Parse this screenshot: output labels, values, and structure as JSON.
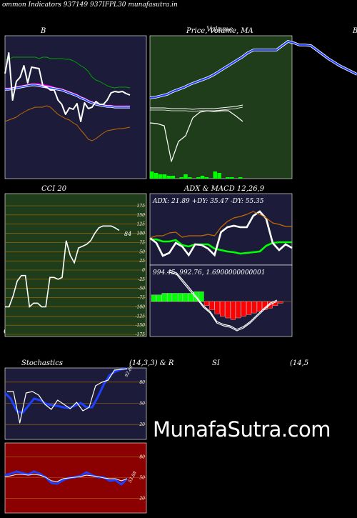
{
  "page": {
    "title": "ommon Indicators 937149 937IFPL30  munafasutra.in",
    "side_label_right": "B",
    "bottom_left_label": "C",
    "watermark": "MunafaSutra.com"
  },
  "panels": {
    "bollinger": {
      "title": "B"
    },
    "price": {
      "title": "Price,  Volume, MA",
      "overlap_title": "Volume"
    },
    "cci": {
      "title": "CCI 20",
      "last_label": "84"
    },
    "adx_macd": {
      "title": "ADX  & MACD 12,26,9",
      "adx_label": "ADX: 21.89  +DY: 35.47 -DY: 55.35",
      "macd_label": "994.45,   992.76,   1.6900000000001"
    },
    "stochastics": {
      "title": "Stochastics",
      "params": "(14,3,3) & R",
      "last_label": "92.86"
    },
    "rsi": {
      "title": "SI",
      "params": "(14,5",
      "last_label": "53.88"
    }
  },
  "colors": {
    "panel_bg": "#1c1c3a",
    "green_bg": "#1f3d1a",
    "rsi_bg": "#8b0000",
    "ma_blue": "#1f3fff",
    "upper_band": "#00a000",
    "lower_band": "#c46a00",
    "white_line": "#ffffff",
    "hist_green": "#00ff00",
    "hist_red": "#ff0000",
    "grid_orange": "#b07000"
  },
  "chart_data": [
    {
      "id": "bollinger",
      "type": "line",
      "series": [
        {
          "name": "",
          "color": "#00a000",
          "values": [
            83,
            84,
            80,
            80,
            80,
            80,
            80,
            80,
            80,
            82,
            80,
            80,
            82,
            82,
            82,
            82,
            83,
            83,
            85,
            88,
            92,
            95,
            100,
            108,
            112,
            114,
            117,
            120,
            122,
            123,
            122,
            122,
            122,
            123
          ]
        },
        {
          "name": "",
          "color": "#ff00ff",
          "values": [
            124,
            124,
            123,
            122,
            121,
            120,
            119,
            118,
            118,
            118,
            119,
            120,
            121,
            123,
            124,
            125,
            127,
            129,
            131,
            133,
            136,
            138,
            141,
            143,
            145,
            146,
            147,
            148,
            148,
            149,
            149,
            149,
            149,
            149
          ]
        },
        {
          "name": "",
          "color": "#1f3fff",
          "values": [
            125,
            125,
            124,
            123,
            122,
            121,
            120,
            119,
            119,
            120,
            121,
            122,
            123,
            124,
            125,
            126,
            128,
            130,
            132,
            134,
            137,
            139,
            142,
            144,
            146,
            147,
            148,
            149,
            149,
            150,
            150,
            150,
            150,
            150
          ]
        },
        {
          "name": "",
          "color": "#c46a00",
          "values": [
            170,
            168,
            166,
            164,
            160,
            157,
            154,
            152,
            150,
            150,
            150,
            148,
            150,
            155,
            160,
            163,
            166,
            168,
            172,
            175,
            182,
            188,
            195,
            197,
            194,
            190,
            186,
            183,
            182,
            181,
            180,
            180,
            179,
            178
          ]
        },
        {
          "name": "",
          "color": "#ffffff",
          "values": [
            103,
            74,
            140,
            114,
            108,
            92,
            116,
            94,
            95,
            96,
            120,
            122,
            126,
            126,
            140,
            146,
            160,
            151,
            153,
            145,
            170,
            144,
            152,
            150,
            142,
            146,
            146,
            140,
            130,
            128,
            129,
            128,
            131,
            133
          ]
        }
      ]
    },
    {
      "id": "price",
      "type": "line",
      "series": [
        {
          "name": "",
          "color": "#1f3fff",
          "values": [
            137,
            136,
            134,
            132,
            128,
            125,
            122,
            118,
            115,
            112,
            109,
            105,
            100,
            95,
            90,
            85,
            80,
            74,
            70,
            70,
            70,
            70,
            70,
            64,
            58,
            60,
            63,
            63,
            64,
            70,
            76,
            82,
            87,
            92,
            96,
            100,
            104
          ]
        },
        {
          "name": "",
          "color": "#ffffff",
          "values": [
            151,
            151,
            151,
            152,
            152,
            152,
            153,
            152,
            152,
            152,
            151,
            150,
            149,
            147
          ]
        },
        {
          "name": "",
          "color": "#ffffff",
          "values": [
            172,
            173,
            176,
            226,
            198,
            190,
            165,
            157,
            155,
            156,
            155,
            155,
            162,
            170
          ]
        }
      ],
      "volume": [
        5,
        4,
        3,
        3,
        2,
        2,
        0,
        1,
        3,
        1,
        0,
        1,
        2,
        1,
        0,
        5,
        4,
        0,
        1,
        1,
        0,
        1
      ]
    },
    {
      "id": "cci",
      "type": "line",
      "ylim": [
        -175,
        175
      ],
      "yticks": [
        175,
        150,
        125,
        100,
        75,
        50,
        25,
        0,
        -25,
        -50,
        -75,
        -100,
        -125,
        -150,
        -175
      ],
      "series": [
        {
          "name": "",
          "color": "#ffffff",
          "values": [
            -100,
            -100,
            -70,
            -30,
            -15,
            -15,
            -100,
            -90,
            -90,
            -100,
            -100,
            -20,
            -20,
            -25,
            -20,
            80,
            40,
            20,
            60,
            65,
            70,
            80,
            100,
            115,
            120,
            120,
            120,
            115,
            108
          ]
        }
      ],
      "last_label": 84
    },
    {
      "id": "adx",
      "type": "line",
      "series": [
        {
          "name": "ADX",
          "color": "#00ff00",
          "values": [
            335,
            335,
            338,
            338,
            336,
            343,
            345,
            342,
            342,
            342,
            348,
            350,
            352,
            353,
            355,
            354,
            353,
            352,
            344,
            340,
            339,
            339,
            339
          ]
        },
        {
          "name": "+DY",
          "color": "#ffffff",
          "values": [
            333,
            340,
            358,
            354,
            340,
            345,
            357,
            342,
            343,
            348,
            357,
            325,
            318,
            316,
            318,
            318,
            302,
            296,
            306,
            340,
            350,
            342,
            347
          ]
        },
        {
          "name": "-DY",
          "color": "#c46a00",
          "values": [
            333,
            330,
            330,
            326,
            325,
            332,
            330,
            330,
            330,
            328,
            330,
            318,
            310,
            305,
            303,
            300,
            296,
            300,
            305,
            312,
            314,
            317,
            317
          ]
        }
      ]
    },
    {
      "id": "macd",
      "type": "bar",
      "histogram": [
        8,
        8,
        10,
        10,
        10,
        10,
        10,
        10,
        12,
        12,
        -5,
        -10,
        -15,
        -18,
        -20,
        -22,
        -20,
        -18,
        -16,
        -14,
        -12,
        -10,
        -8,
        -5,
        -2
      ],
      "series": [
        {
          "name": "",
          "color": "#ffffff",
          "values": [
            381,
            384,
            396,
            407,
            418,
            430,
            438,
            452,
            456,
            458,
            463,
            459,
            452,
            443,
            434,
            426,
            422
          ]
        },
        {
          "name": "",
          "color": "#ffffff",
          "values": [
            378,
            382,
            393,
            404,
            416,
            428,
            436,
            450,
            454,
            456,
            461,
            457,
            450,
            441,
            432,
            424,
            420
          ]
        }
      ]
    },
    {
      "id": "stochastics",
      "type": "line",
      "ylim": [
        0,
        100
      ],
      "yticks": [
        80,
        50,
        20
      ],
      "series": [
        {
          "name": "",
          "color": "#1f3fff",
          "values": [
            550,
            558,
            575,
            578,
            568,
            558,
            560,
            565,
            567,
            568,
            570,
            571,
            568,
            564,
            570,
            570,
            555,
            538,
            525,
            520,
            517,
            516
          ]
        },
        {
          "name": "",
          "color": "#ffffff",
          "values": [
            548,
            548,
            592,
            550,
            548,
            553,
            566,
            573,
            560,
            566,
            572,
            563,
            575,
            570,
            540,
            535,
            532,
            518,
            517,
            516
          ]
        }
      ],
      "last_label": 92.86
    },
    {
      "id": "rsi",
      "type": "line",
      "ylim": [
        0,
        100
      ],
      "yticks": [
        80,
        50,
        20
      ],
      "series": [
        {
          "name": "",
          "color": "#1f3fff",
          "values": [
            665,
            663,
            660,
            662,
            664,
            660,
            663,
            668,
            676,
            677,
            672,
            669,
            668,
            666,
            661,
            665,
            668,
            668,
            673,
            672,
            678,
            670
          ]
        },
        {
          "name": "",
          "color": "#ffffff",
          "values": [
            667,
            666,
            664,
            664,
            665,
            664,
            665,
            668,
            673,
            674,
            670,
            669,
            668,
            667,
            665,
            666,
            667,
            669,
            670,
            670,
            673,
            670
          ]
        }
      ],
      "last_label": 53.88
    }
  ]
}
